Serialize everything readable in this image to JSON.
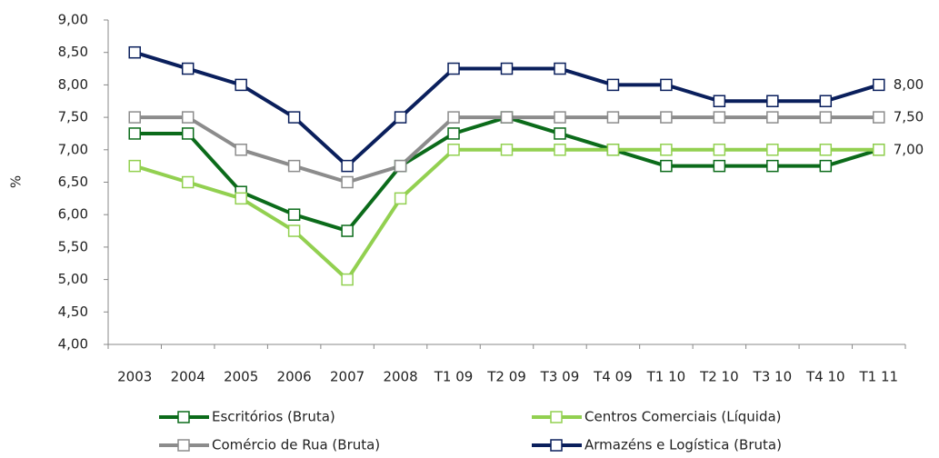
{
  "chart_data": {
    "type": "line",
    "y_label": "%",
    "categories": [
      "2003",
      "2004",
      "2005",
      "2006",
      "2007",
      "2008",
      "T1 09",
      "T2 09",
      "T3 09",
      "T4 09",
      "T1 10",
      "T2 10",
      "T3 10",
      "T4 10",
      "T1 11"
    ],
    "series": [
      {
        "name": "Escritórios (Bruta)",
        "color": "#0b6b1a",
        "values": [
          7.25,
          7.25,
          6.35,
          6.0,
          5.75,
          6.75,
          7.25,
          7.5,
          7.25,
          7.0,
          6.75,
          6.75,
          6.75,
          6.75,
          7.0
        ]
      },
      {
        "name": "Centros Comerciais (Líquida)",
        "color": "#92d050",
        "values": [
          6.75,
          6.5,
          6.25,
          5.75,
          5.0,
          6.25,
          7.0,
          7.0,
          7.0,
          7.0,
          7.0,
          7.0,
          7.0,
          7.0,
          7.0
        ],
        "value_labels": [
          null,
          null,
          null,
          null,
          null,
          null,
          null,
          null,
          null,
          null,
          null,
          null,
          null,
          null,
          "7,00"
        ]
      },
      {
        "name": "Comércio de Rua  (Bruta)",
        "color": "#8c8c8c",
        "values": [
          7.5,
          7.5,
          7.0,
          6.75,
          6.5,
          6.75,
          7.5,
          7.5,
          7.5,
          7.5,
          7.5,
          7.5,
          7.5,
          7.5,
          7.5
        ],
        "value_labels": [
          null,
          null,
          null,
          null,
          null,
          null,
          null,
          null,
          null,
          null,
          null,
          null,
          null,
          null,
          "7,50"
        ]
      },
      {
        "name": "Armazéns e Logística (Bruta)",
        "color": "#0a1f5c",
        "values": [
          8.5,
          8.25,
          8.0,
          7.5,
          6.75,
          7.5,
          8.25,
          8.25,
          8.25,
          8.0,
          8.0,
          7.75,
          7.75,
          7.75,
          8.0
        ],
        "value_labels": [
          null,
          null,
          null,
          null,
          null,
          null,
          null,
          null,
          null,
          null,
          null,
          null,
          null,
          null,
          "8,00"
        ]
      }
    ],
    "ylim": [
      4,
      9
    ],
    "yticks": [
      {
        "value": 4,
        "label": "4,00"
      },
      {
        "value": 4.5,
        "label": "4,50"
      },
      {
        "value": 5,
        "label": "5,00"
      },
      {
        "value": 5.5,
        "label": "5,50"
      },
      {
        "value": 6,
        "label": "6,00"
      },
      {
        "value": 6.5,
        "label": "6,50"
      },
      {
        "value": 7,
        "label": "7,00"
      },
      {
        "value": 7.5,
        "label": "7,50"
      },
      {
        "value": 8,
        "label": "8,00"
      },
      {
        "value": 8.5,
        "label": "8,50"
      },
      {
        "value": 9,
        "label": "9,00"
      }
    ],
    "grid": false
  }
}
